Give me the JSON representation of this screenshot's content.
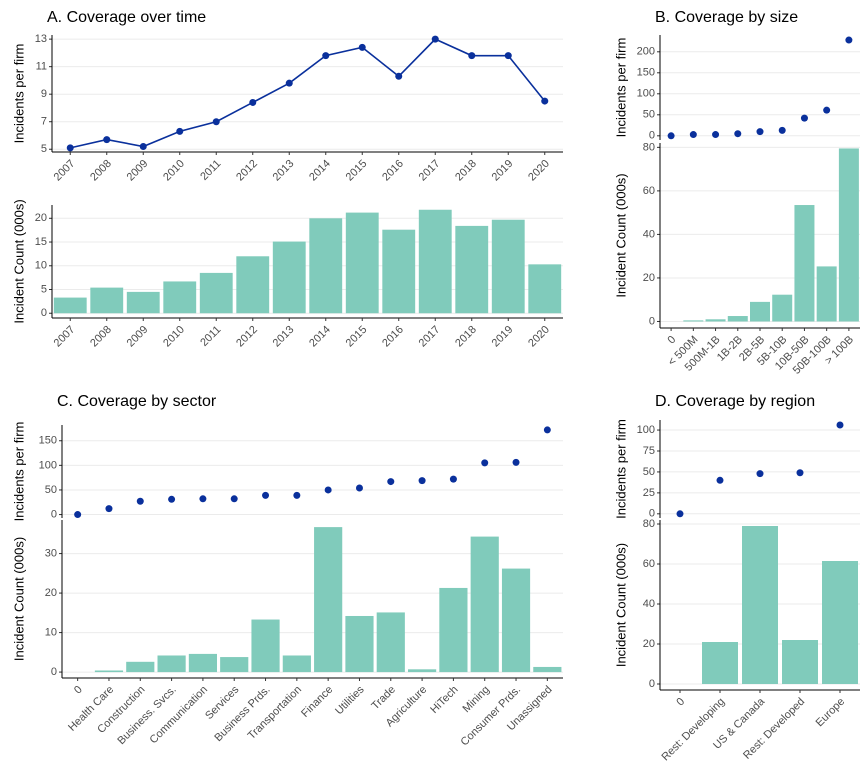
{
  "chart_data": [
    {
      "type": "line",
      "title": "A. Coverage over time",
      "y_label": "Incidents per firm",
      "categories": [
        "2007",
        "2008",
        "2009",
        "2010",
        "2011",
        "2012",
        "2013",
        "2014",
        "2015",
        "2016",
        "2017",
        "2018",
        "2019",
        "2020"
      ],
      "values": [
        5.1,
        5.7,
        5.2,
        6.3,
        7.0,
        8.4,
        9.8,
        11.8,
        12.4,
        10.3,
        13.0,
        11.8,
        11.8,
        8.5
      ],
      "color": "#0a309c",
      "ylim": [
        4.8,
        13.3
      ],
      "yticks": [
        5,
        7,
        9,
        11,
        13
      ],
      "grid": true
    },
    {
      "type": "bar",
      "y_label": "Incident Count (000s)",
      "categories": [
        "2007",
        "2008",
        "2009",
        "2010",
        "2011",
        "2012",
        "2013",
        "2014",
        "2015",
        "2016",
        "2017",
        "2018",
        "2019",
        "2020"
      ],
      "values": [
        3.3,
        5.4,
        4.5,
        6.7,
        8.5,
        12.0,
        15.1,
        20.0,
        21.2,
        17.6,
        21.8,
        18.4,
        19.7,
        10.3
      ],
      "color": "#80cbbb",
      "ylim": [
        -1,
        22.8
      ],
      "yticks": [
        0,
        5,
        10,
        15,
        20
      ],
      "grid": true
    },
    {
      "type": "scatter",
      "title": "B. Coverage by size",
      "y_label": "Incidents per firm",
      "values": [
        0,
        3,
        3,
        5,
        10,
        13,
        42,
        61,
        228
      ],
      "color": "#0a309c",
      "ylim": [
        -10,
        240
      ],
      "yticks": [
        0,
        50,
        100,
        150,
        200
      ],
      "grid": true
    },
    {
      "type": "bar",
      "y_label": "Incident Count (000s)",
      "categories": [
        "0",
        "< 500M",
        "500M-1B",
        "1B-2B",
        "2B-5B",
        "5B-10B",
        "10B-50B",
        "50B-100B",
        "> 100B"
      ],
      "values": [
        0,
        0.5,
        1,
        2.5,
        9,
        12.3,
        53.5,
        25.3,
        79.5
      ],
      "color": "#80cbbb",
      "ylim": [
        -3,
        82
      ],
      "yticks": [
        0,
        20,
        40,
        60,
        80
      ],
      "grid": true
    },
    {
      "type": "scatter",
      "title": "C. Coverage by sector",
      "y_label": "Incidents per firm",
      "values": [
        0,
        12,
        27,
        31,
        32,
        32,
        39,
        39,
        50,
        54,
        67,
        69,
        72,
        105,
        106,
        172
      ],
      "color": "#0a309c",
      "ylim": [
        -7,
        182
      ],
      "yticks": [
        0,
        50,
        100,
        150
      ],
      "grid": true
    },
    {
      "type": "bar",
      "y_label": "Incident Count (000s)",
      "categories": [
        "0",
        "Health Care",
        "Construction",
        "Business. Svcs.",
        "Communication",
        "Services",
        "Business Prds.",
        "Transportation",
        "Finance",
        "Utilities",
        "Trade",
        "Agriculture",
        "HiTech",
        "Mining",
        "Consumer Prds.",
        "Unassigned"
      ],
      "values": [
        0,
        0.4,
        2.6,
        4.2,
        4.6,
        3.8,
        13.3,
        4.2,
        36.7,
        14.2,
        15.1,
        0.7,
        21.3,
        34.3,
        26.2,
        1.3
      ],
      "color": "#80cbbb",
      "ylim": [
        -1.5,
        38.5
      ],
      "yticks": [
        0,
        10,
        20,
        30
      ],
      "grid": true
    },
    {
      "type": "scatter",
      "title": "D. Coverage by region",
      "y_label": "Incidents per firm",
      "values": [
        0,
        40,
        48,
        49,
        106
      ],
      "color": "#0a309c",
      "ylim": [
        -5,
        112
      ],
      "yticks": [
        0,
        25,
        50,
        75,
        100
      ],
      "grid": true
    },
    {
      "type": "bar",
      "y_label": "Incident Count (000s)",
      "categories": [
        "0",
        "Rest: Developing",
        "US & Canada",
        "Rest: Developed",
        "Europe"
      ],
      "values": [
        0,
        21,
        79,
        22,
        61.5
      ],
      "color": "#80cbbb",
      "ylim": [
        -3,
        82
      ],
      "yticks": [
        0,
        20,
        40,
        60,
        80
      ],
      "grid": true
    }
  ]
}
